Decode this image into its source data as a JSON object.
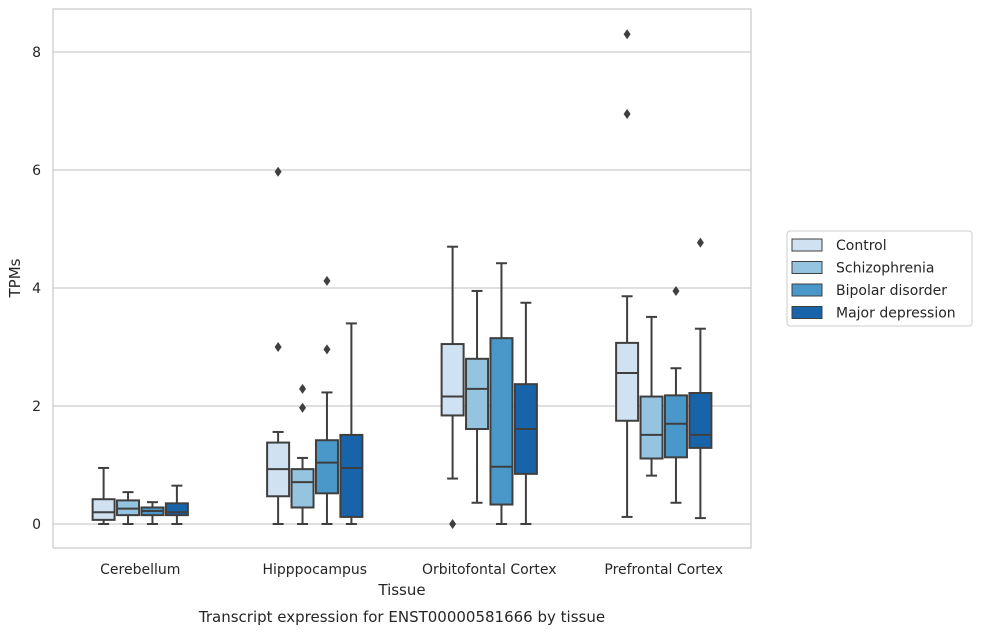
{
  "chart_data": {
    "type": "box",
    "caption": "Transcript expression for ENST00000581666 by tissue",
    "xlabel": "Tissue",
    "ylabel": "TPMs",
    "ylim": [
      -0.4,
      8.75
    ],
    "yticks": [
      0,
      2,
      4,
      6,
      8
    ],
    "grid": "horizontal",
    "legend_position": "right",
    "categories": [
      "Cerebellum",
      "Hipppocampus",
      "Orbitofontal Cortex",
      "Prefrontal Cortex"
    ],
    "series": [
      {
        "name": "Control",
        "color": "#d0e1f2",
        "boxes": [
          {
            "whisker_low": 0.0,
            "q1": 0.07,
            "median": 0.2,
            "q3": 0.42,
            "whisker_high": 0.95,
            "outliers": []
          },
          {
            "whisker_low": 0.0,
            "q1": 0.47,
            "median": 0.93,
            "q3": 1.38,
            "whisker_high": 1.56,
            "outliers": [
              3.0,
              5.97
            ]
          },
          {
            "whisker_low": 0.77,
            "q1": 1.84,
            "median": 2.16,
            "q3": 3.05,
            "whisker_high": 4.7,
            "outliers": [
              0.0
            ]
          },
          {
            "whisker_low": 0.12,
            "q1": 1.75,
            "median": 2.56,
            "q3": 3.07,
            "whisker_high": 3.86,
            "outliers": [
              6.95,
              8.3
            ]
          }
        ]
      },
      {
        "name": "Schizophrenia",
        "color": "#94c4df",
        "boxes": [
          {
            "whisker_low": 0.0,
            "q1": 0.15,
            "median": 0.26,
            "q3": 0.4,
            "whisker_high": 0.54,
            "outliers": []
          },
          {
            "whisker_low": 0.0,
            "q1": 0.28,
            "median": 0.71,
            "q3": 0.93,
            "whisker_high": 1.12,
            "outliers": [
              1.97,
              2.29
            ]
          },
          {
            "whisker_low": 0.36,
            "q1": 1.61,
            "median": 2.29,
            "q3": 2.8,
            "whisker_high": 3.95,
            "outliers": []
          },
          {
            "whisker_low": 0.82,
            "q1": 1.11,
            "median": 1.51,
            "q3": 2.16,
            "whisker_high": 3.51,
            "outliers": []
          }
        ]
      },
      {
        "name": "Bipolar disorder",
        "color": "#4a98c9",
        "boxes": [
          {
            "whisker_low": 0.0,
            "q1": 0.15,
            "median": 0.22,
            "q3": 0.28,
            "whisker_high": 0.37,
            "outliers": []
          },
          {
            "whisker_low": 0.0,
            "q1": 0.52,
            "median": 1.04,
            "q3": 1.42,
            "whisker_high": 2.23,
            "outliers": [
              2.96,
              4.12
            ]
          },
          {
            "whisker_low": 0.0,
            "q1": 0.33,
            "median": 0.97,
            "q3": 3.15,
            "whisker_high": 4.42,
            "outliers": []
          },
          {
            "whisker_low": 0.36,
            "q1": 1.13,
            "median": 1.7,
            "q3": 2.18,
            "whisker_high": 2.64,
            "outliers": [
              3.95
            ]
          }
        ]
      },
      {
        "name": "Major depression",
        "color": "#1764ab",
        "boxes": [
          {
            "whisker_low": 0.0,
            "q1": 0.15,
            "median": 0.2,
            "q3": 0.35,
            "whisker_high": 0.65,
            "outliers": []
          },
          {
            "whisker_low": 0.0,
            "q1": 0.12,
            "median": 0.95,
            "q3": 1.51,
            "whisker_high": 3.4,
            "outliers": []
          },
          {
            "whisker_low": 0.0,
            "q1": 0.85,
            "median": 1.61,
            "q3": 2.37,
            "whisker_high": 3.75,
            "outliers": []
          },
          {
            "whisker_low": 0.1,
            "q1": 1.29,
            "median": 1.51,
            "q3": 2.22,
            "whisker_high": 3.31,
            "outliers": [
              4.77
            ]
          }
        ]
      }
    ]
  }
}
